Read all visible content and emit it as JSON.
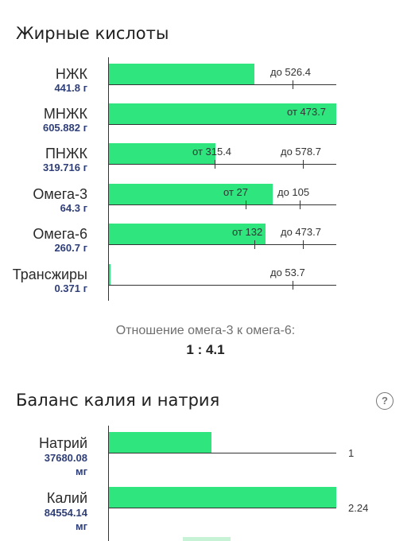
{
  "fatty_acids": {
    "title": "Жирные кислоты",
    "rows": [
      {
        "name": "НЖК",
        "value": "441.8 г",
        "fill": 0.64,
        "labels": [
          "до 526.4"
        ],
        "ticks": [
          0.808
        ]
      },
      {
        "name": "МНЖК",
        "value": "605.882 г",
        "fill": 1.0,
        "labels": [
          "от 473.7"
        ],
        "ticks": []
      },
      {
        "name": "ПНЖК",
        "value": "319.716 г",
        "fill": 0.47,
        "labels": [
          "от 315.4",
          "до 578.7"
        ],
        "ticks": [
          0.465,
          0.853
        ]
      },
      {
        "name": "Омега-3",
        "value": "64.3 г",
        "fill": 0.72,
        "labels": [
          "от 27",
          "до 105"
        ],
        "ticks": [
          0.6,
          0.84
        ]
      },
      {
        "name": "Омега-6",
        "value": "260.7 г",
        "fill": 0.69,
        "labels": [
          "от 132",
          "до 473.7"
        ],
        "ticks": [
          0.64,
          0.853
        ]
      },
      {
        "name": "Трансжиры",
        "value": "0.371 г",
        "fill": 0.005,
        "labels": [
          "до 53.7"
        ],
        "ticks": [
          0.808
        ]
      }
    ],
    "ratio_label": "Отношение омега-3 к омега-6:",
    "ratio_value": "1 : 4.1"
  },
  "potassium_sodium": {
    "title": "Баланс калия и натрия",
    "help_icon": "question-circle-icon",
    "rows": [
      {
        "name": "Натрий",
        "value_line1": "37680.08",
        "value_line2": "мг",
        "fill": 0.45,
        "ratio": "1"
      },
      {
        "name": "Калий",
        "value_line1": "84554.14",
        "value_line2": "мг",
        "fill": 1.0,
        "ratio": "2.24"
      }
    ]
  },
  "colors": {
    "bar": "#2ee57e",
    "value_text": "#2e3e78"
  }
}
